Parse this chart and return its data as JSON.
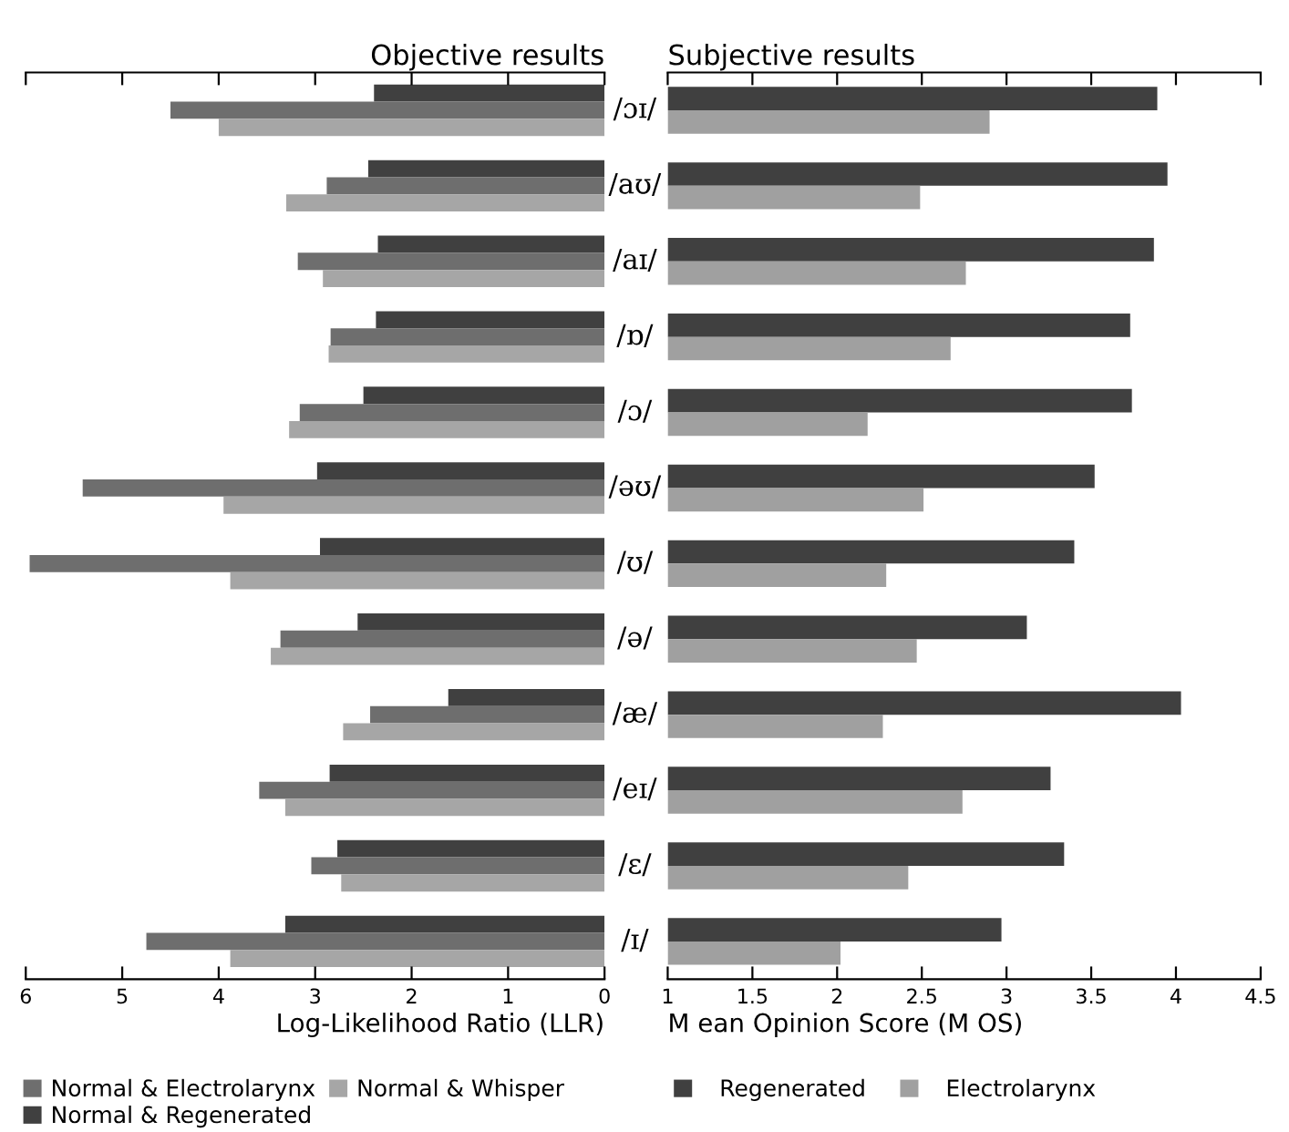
{
  "chart_data": [
    {
      "type": "bar",
      "orientation": "horizontal",
      "title": "Objective results",
      "xlabel": "Log-Likelihood Ratio (LLR)",
      "categories": [
        "/ɔɪ/",
        "/aʊ/",
        "/aɪ/",
        "/ɒ/",
        "/ɔ/",
        "/əʊ/",
        "/ʊ/",
        "/ə/",
        "/æ/",
        "/eɪ/",
        "/ɛ/",
        "/ɪ/"
      ],
      "series": [
        {
          "name": "Normal & Regenerated",
          "color": "#404040",
          "values": [
            2.39,
            2.45,
            2.35,
            2.37,
            2.5,
            2.98,
            2.95,
            2.56,
            1.62,
            2.85,
            2.77,
            3.31
          ]
        },
        {
          "name": "Normal & Electrolarynx",
          "color": "#6e6e6e",
          "values": [
            4.5,
            2.88,
            3.18,
            2.84,
            3.16,
            5.41,
            5.96,
            3.36,
            2.43,
            3.58,
            3.04,
            4.75
          ]
        },
        {
          "name": "Normal & Whisper",
          "color": "#a6a6a6",
          "values": [
            4.0,
            3.3,
            2.92,
            2.86,
            3.27,
            3.95,
            3.88,
            3.46,
            2.71,
            3.31,
            2.73,
            3.88
          ]
        }
      ],
      "xlim": [
        6,
        0
      ],
      "xticks": [
        6,
        5,
        4,
        3,
        2,
        1,
        0
      ],
      "tick_labels": "x",
      "grid": false,
      "legend": "bottom"
    },
    {
      "type": "bar",
      "orientation": "horizontal",
      "title": "Subjective results",
      "xlabel": "M ean Opinion Score (M OS)",
      "categories": [
        "/ɔɪ/",
        "/aʊ/",
        "/aɪ/",
        "/ɒ/",
        "/ɔ/",
        "/əʊ/",
        "/ʊ/",
        "/ə/",
        "/æ/",
        "/eɪ/",
        "/ɛ/",
        "/ɪ/"
      ],
      "series": [
        {
          "name": "Regenerated",
          "color": "#404040",
          "values": [
            3.89,
            3.95,
            3.87,
            3.73,
            3.74,
            3.52,
            3.4,
            3.12,
            4.03,
            3.26,
            3.34,
            2.97
          ]
        },
        {
          "name": "Electrolarynx",
          "color": "#a0a0a0",
          "values": [
            2.9,
            2.49,
            2.76,
            2.67,
            2.18,
            2.51,
            2.29,
            2.47,
            2.27,
            2.74,
            2.42,
            2.02
          ]
        }
      ],
      "xlim": [
        1,
        4.5
      ],
      "xticks": [
        1,
        1.5,
        2,
        2.5,
        3,
        3.5,
        4,
        4.5
      ],
      "tick_labels": "x",
      "grid": false,
      "legend": "bottom"
    }
  ]
}
